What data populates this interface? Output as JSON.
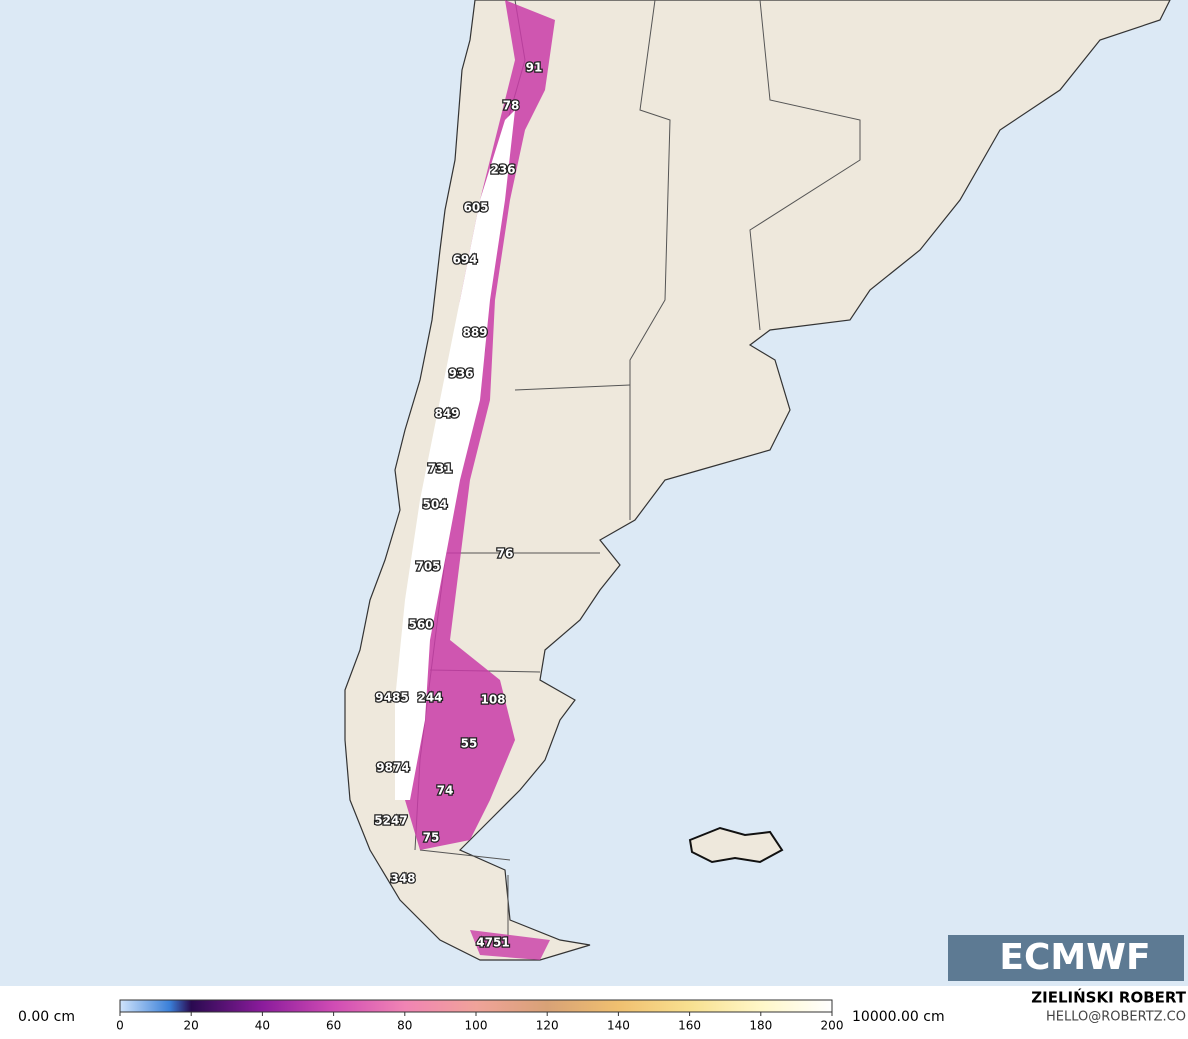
{
  "map": {
    "labels": [
      91,
      78,
      236,
      605,
      694,
      889,
      936,
      849,
      731,
      504,
      76,
      705,
      560,
      9485,
      244,
      108,
      55,
      9874,
      74,
      5247,
      75,
      348,
      4751
    ]
  },
  "legend": {
    "min_label": "0.00 cm",
    "max_label": "10000.00 cm",
    "ticks": [
      0,
      20,
      40,
      60,
      80,
      100,
      120,
      140,
      160,
      180,
      200
    ]
  },
  "logo": "ECMWF",
  "credit": {
    "name": "ZIELIŃSKI ROBERT",
    "contact": "HELLO@ROBERTZ.CO"
  }
}
